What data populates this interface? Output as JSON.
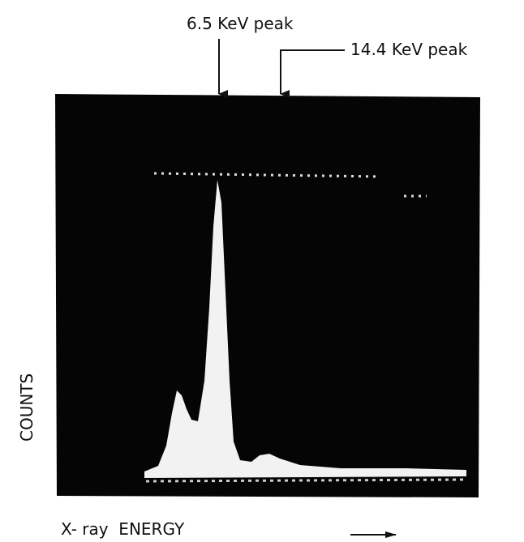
{
  "annotations": [
    "6.5 KeV peak",
    "14.4 KeV peak"
  ],
  "axis_labels": {
    "y": "COUNTS",
    "x": "X- ray  ENERGY"
  }
}
